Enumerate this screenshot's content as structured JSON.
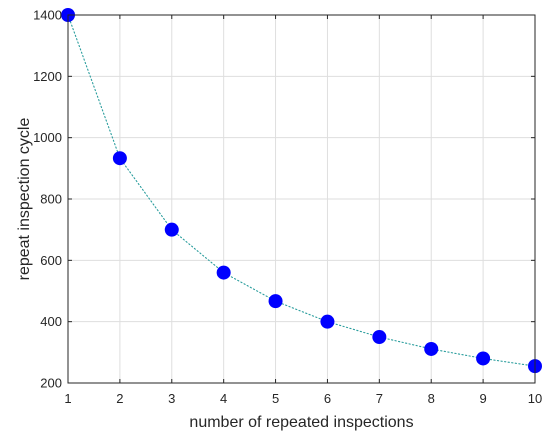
{
  "chart_data": {
    "type": "scatter",
    "title": "",
    "xlabel": "number of repeated inspections",
    "ylabel": "repeat inspection cycle",
    "x": [
      1,
      2,
      3,
      4,
      5,
      6,
      7,
      8,
      9,
      10
    ],
    "series": [
      {
        "values": [
          1400,
          933,
          700,
          560,
          467,
          400,
          350,
          311,
          280,
          255
        ],
        "marker": "filled-circle",
        "color": "#0000ff",
        "line": "dotted",
        "line_color": "#2a9d9d"
      }
    ],
    "xlim": [
      1,
      10
    ],
    "ylim": [
      200,
      1400
    ],
    "xticks": [
      "1",
      "2",
      "3",
      "4",
      "5",
      "6",
      "7",
      "8",
      "9",
      "10"
    ],
    "yticks": [
      "200",
      "400",
      "600",
      "800",
      "1000",
      "1200",
      "1400"
    ],
    "grid": true,
    "legend": "none"
  }
}
